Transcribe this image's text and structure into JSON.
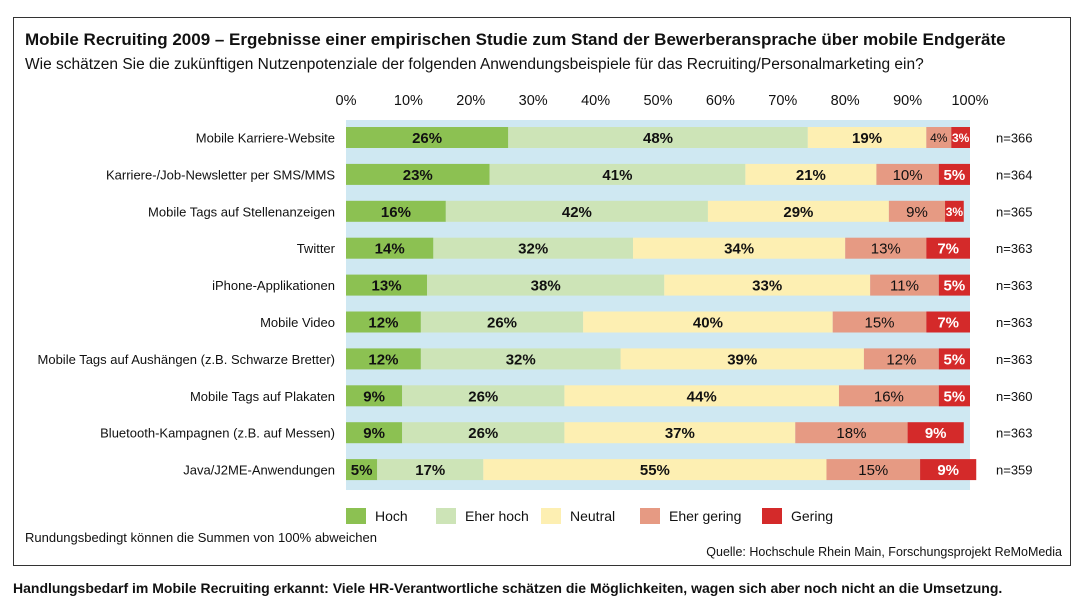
{
  "header": {
    "title": "Mobile Recruiting 2009 – Ergebnisse einer empirischen Studie zum Stand der Bewerberansprache über mobile Endgeräte",
    "subtitle": "Wie schätzen Sie die zukünftigen Nutzenpotenziale der folgenden Anwendungsbeispiele für das Recruiting/Personalmarketing ein?"
  },
  "footer": {
    "note": "Rundungsbedingt können die Summen von 100% abweichen",
    "source": "Quelle: Hochschule Rhein Main, Forschungsprojekt ReMoMedia",
    "caption": "Handlungsbedarf im Mobile Recruiting erkannt: Viele HR-Verantwortliche schätzen die Möglichkeiten, wagen sich aber noch nicht an die Umsetzung."
  },
  "chart_data": {
    "type": "bar",
    "orientation": "horizontal",
    "stacked": true,
    "title": "Mobile Recruiting 2009 – Ergebnisse einer empirischen Studie zum Stand der Bewerberansprache über mobile Endgeräte",
    "xlim": [
      0,
      100
    ],
    "xticks": [
      "0%",
      "10%",
      "20%",
      "30%",
      "40%",
      "50%",
      "60%",
      "70%",
      "80%",
      "90%",
      "100%"
    ],
    "categories": [
      "Mobile Karriere-Website",
      "Karriere-/Job-Newsletter per SMS/MMS",
      "Mobile Tags auf Stellenanzeigen",
      "Twitter",
      "iPhone-Applikationen",
      "Mobile Video",
      "Mobile Tags auf Aushängen (z.B. Schwarze Bretter)",
      "Mobile Tags auf Plakaten",
      "Bluetooth-Kampagnen (z.B. auf Messen)",
      "Java/J2ME-Anwendungen"
    ],
    "n_labels": [
      "n=366",
      "n=364",
      "n=365",
      "n=363",
      "n=363",
      "n=363",
      "n=363",
      "n=360",
      "n=363",
      "n=359"
    ],
    "series": [
      {
        "name": "Hoch",
        "color": "#8cc152",
        "values": [
          26,
          23,
          16,
          14,
          13,
          12,
          12,
          9,
          9,
          5
        ]
      },
      {
        "name": "Eher hoch",
        "color": "#cde4b7",
        "values": [
          48,
          41,
          42,
          32,
          38,
          26,
          32,
          26,
          26,
          17
        ]
      },
      {
        "name": "Neutral",
        "color": "#fdefb2",
        "values": [
          19,
          21,
          29,
          34,
          33,
          40,
          39,
          44,
          37,
          55
        ]
      },
      {
        "name": "Eher gering",
        "color": "#e69a83",
        "values": [
          4,
          10,
          9,
          13,
          11,
          15,
          12,
          16,
          18,
          15
        ]
      },
      {
        "name": "Gering",
        "color": "#d42a2a",
        "values": [
          3,
          5,
          3,
          7,
          5,
          7,
          5,
          5,
          9,
          9
        ]
      }
    ],
    "legend_position": "bottom"
  }
}
